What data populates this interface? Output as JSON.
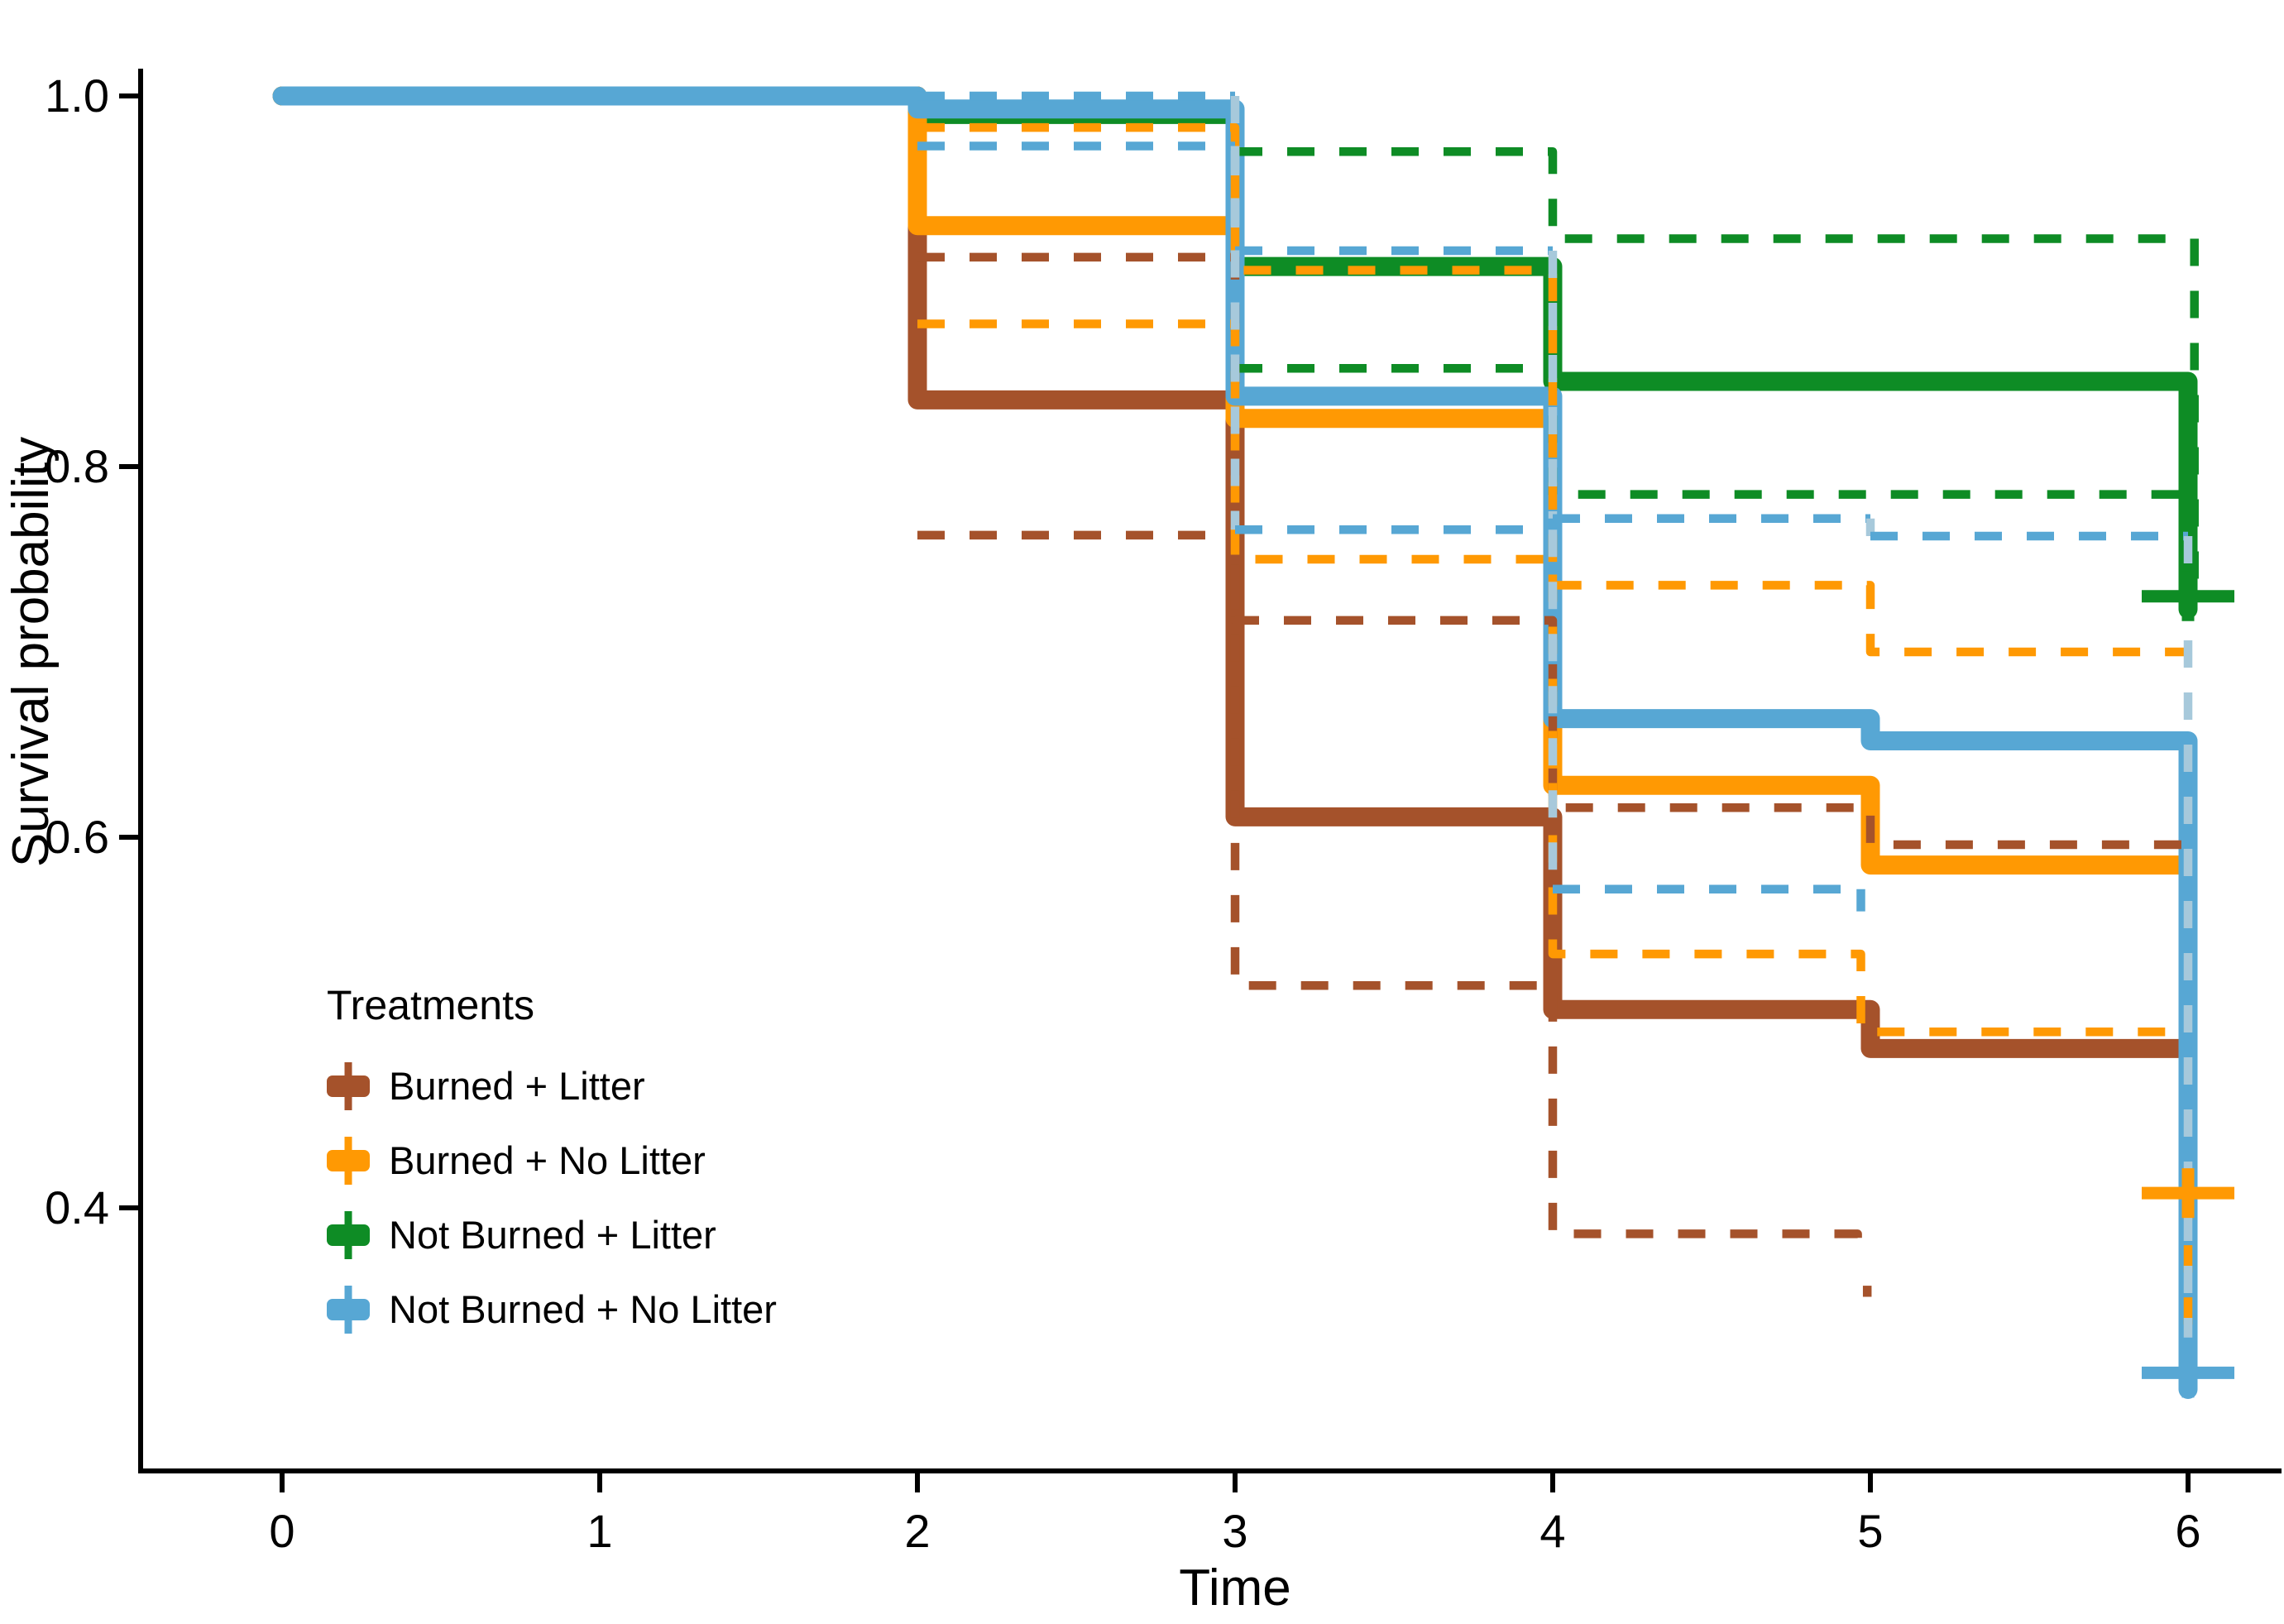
{
  "chart_data": {
    "type": "line",
    "subtype": "kaplan-meier-step",
    "title": "",
    "xlabel": "Time",
    "ylabel": "Survival probability",
    "xlim": [
      0,
      6
    ],
    "ylim": [
      0.26,
      1.02
    ],
    "grid": false,
    "x_ticks": [
      0,
      1,
      2,
      3,
      4,
      5,
      6
    ],
    "x_tick_labels": [
      "0",
      "1",
      "2",
      "3",
      "4",
      "5",
      "6"
    ],
    "y_ticks": [
      0.4,
      0.6,
      0.8,
      1.0
    ],
    "y_tick_labels": [
      "0.4",
      "0.6",
      "0.8",
      "1.0"
    ],
    "legend": {
      "title": "Treatments",
      "position": "lower-left",
      "labels": [
        "Burned + Litter",
        "Burned + No Litter",
        "Not Burned + Litter",
        "Not Burned + No Litter"
      ]
    },
    "colors": {
      "burned_litter": "#A5522B",
      "burned_no_litter": "#FF9903",
      "not_burned_litter": "#0E8C25",
      "not_burned_no_litter": "#57A7D4",
      "ci_over_solid": "#A7C9DB",
      "axis": "#000000"
    },
    "series": [
      {
        "name": "Burned + Litter",
        "color": "#A5522B",
        "estimate": [
          [
            0,
            1
          ],
          [
            2,
            1
          ],
          [
            2,
            0.836
          ],
          [
            3,
            0.836
          ],
          [
            3,
            0.611
          ],
          [
            4,
            0.611
          ],
          [
            4,
            0.507
          ],
          [
            5,
            0.507
          ],
          [
            5,
            0.486
          ],
          [
            6,
            0.486
          ]
        ],
        "ci_segments": [
          {
            "points": [
              [
                2,
                0.913
              ],
              [
                3,
                0.913
              ],
              [
                3,
                0.717
              ],
              [
                4,
                0.717
              ],
              [
                4,
                0.616
              ],
              [
                5,
                0.616
              ],
              [
                5,
                0.596
              ],
              [
                6,
                0.596
              ]
            ]
          },
          {
            "points": [
              [
                2,
                0.763
              ],
              [
                3,
                0.763
              ],
              [
                3,
                0.52
              ],
              [
                4,
                0.52
              ],
              [
                4,
                0.386
              ],
              [
                4.96,
                0.386
              ],
              [
                4.96,
                0.371
              ]
            ]
          },
          {
            "points": [
              [
                4.99,
                0.358
              ],
              [
                4.99,
                0.352
              ]
            ]
          }
        ],
        "markers": []
      },
      {
        "name": "Burned + No Litter",
        "color": "#FF9903",
        "estimate": [
          [
            0,
            1
          ],
          [
            2,
            1
          ],
          [
            2,
            0.93
          ],
          [
            3,
            0.93
          ],
          [
            3,
            0.826
          ],
          [
            4,
            0.826
          ],
          [
            4,
            0.628
          ],
          [
            5,
            0.628
          ],
          [
            5,
            0.585
          ],
          [
            6,
            0.585
          ],
          [
            6,
            0.408
          ]
        ],
        "ci_segments": [
          {
            "points": [
              [
                2,
                0.983
              ],
              [
                3,
                0.983
              ],
              [
                3,
                0.906
              ],
              [
                4,
                0.906
              ],
              [
                4,
                0.736
              ],
              [
                5,
                0.736
              ],
              [
                5,
                0.7
              ],
              [
                6,
                0.7
              ]
            ]
          },
          {
            "points": [
              [
                2,
                0.877
              ],
              [
                3,
                0.877
              ],
              [
                3,
                0.75
              ],
              [
                4,
                0.75
              ],
              [
                4,
                0.537
              ],
              [
                4.97,
                0.537
              ],
              [
                4.97,
                0.495
              ],
              [
                6,
                0.495
              ]
            ]
          },
          {
            "points": [
              [
                6,
                0.408
              ],
              [
                6,
                0.323
              ]
            ]
          }
        ],
        "markers": [
          {
            "t": 6,
            "v": 0.408
          }
        ]
      },
      {
        "name": "Not Burned + Litter",
        "color": "#0E8C25",
        "estimate": [
          [
            0,
            1
          ],
          [
            2,
            1
          ],
          [
            2,
            0.99
          ],
          [
            3,
            0.99
          ],
          [
            3,
            0.908
          ],
          [
            4,
            0.908
          ],
          [
            4,
            0.846
          ],
          [
            6,
            0.846
          ],
          [
            6,
            0.723
          ]
        ],
        "ci_segments": [
          {
            "points": [
              [
                3,
                0.97
              ],
              [
                4,
                0.97
              ],
              [
                4,
                0.923
              ],
              [
                6,
                0.923
              ]
            ]
          },
          {
            "points": [
              [
                6.02,
                0.923
              ],
              [
                6.02,
                0.734
              ]
            ]
          },
          {
            "points": [
              [
                3,
                0.853
              ],
              [
                4,
                0.853
              ],
              [
                4,
                0.785
              ],
              [
                6,
                0.785
              ]
            ]
          }
        ],
        "markers": [
          {
            "t": 6,
            "v": 0.73
          }
        ]
      },
      {
        "name": "Not Burned + No Litter",
        "color": "#57A7D4",
        "estimate": [
          [
            0,
            1
          ],
          [
            2,
            1
          ],
          [
            2,
            0.993
          ],
          [
            3,
            0.993
          ],
          [
            3,
            0.838
          ],
          [
            4,
            0.838
          ],
          [
            4,
            0.664
          ],
          [
            5,
            0.664
          ],
          [
            5,
            0.652
          ],
          [
            6,
            0.652
          ],
          [
            6,
            0.302
          ]
        ],
        "ci_segments": [
          {
            "points": [
              [
                2,
                1.0
              ],
              [
                3,
                1.0
              ]
            ]
          },
          {
            "points": [
              [
                3,
                1.0
              ],
              [
                3,
                0.9165
              ]
            ],
            "color": "#A7C9DB"
          },
          {
            "points": [
              [
                3,
                0.9165
              ],
              [
                4,
                0.9165
              ]
            ]
          },
          {
            "points": [
              [
                4,
                0.9165
              ],
              [
                4,
                0.772
              ]
            ],
            "color": "#A7C9DB"
          },
          {
            "points": [
              [
                4,
                0.772
              ],
              [
                5,
                0.772
              ]
            ]
          },
          {
            "points": [
              [
                5,
                0.772
              ],
              [
                5,
                0.7625
              ]
            ],
            "color": "#A7C9DB"
          },
          {
            "points": [
              [
                5,
                0.7625
              ],
              [
                6,
                0.7625
              ]
            ]
          },
          {
            "points": [
              [
                6,
                0.7625
              ],
              [
                6,
                0.33
              ]
            ],
            "color": "#A7C9DB"
          },
          {
            "points": [
              [
                2,
                0.973
              ],
              [
                3,
                0.973
              ]
            ]
          },
          {
            "points": [
              [
                3,
                0.973
              ],
              [
                3,
                0.766
              ]
            ],
            "color": "#A7C9DB"
          },
          {
            "points": [
              [
                3,
                0.766
              ],
              [
                4,
                0.766
              ]
            ]
          },
          {
            "points": [
              [
                4,
                0.766
              ],
              [
                4,
                0.572
              ]
            ],
            "color": "#A7C9DB"
          },
          {
            "points": [
              [
                4,
                0.572
              ],
              [
                4.97,
                0.572
              ]
            ]
          },
          {
            "points": [
              [
                4.97,
                0.572
              ],
              [
                4.97,
                0.56
              ]
            ]
          }
        ],
        "markers": [
          {
            "t": 6,
            "v": 0.311
          }
        ]
      }
    ],
    "draw_order_solid": [
      2,
      0,
      1,
      3
    ],
    "draw_order_ci": [
      2,
      0,
      1,
      3
    ]
  }
}
